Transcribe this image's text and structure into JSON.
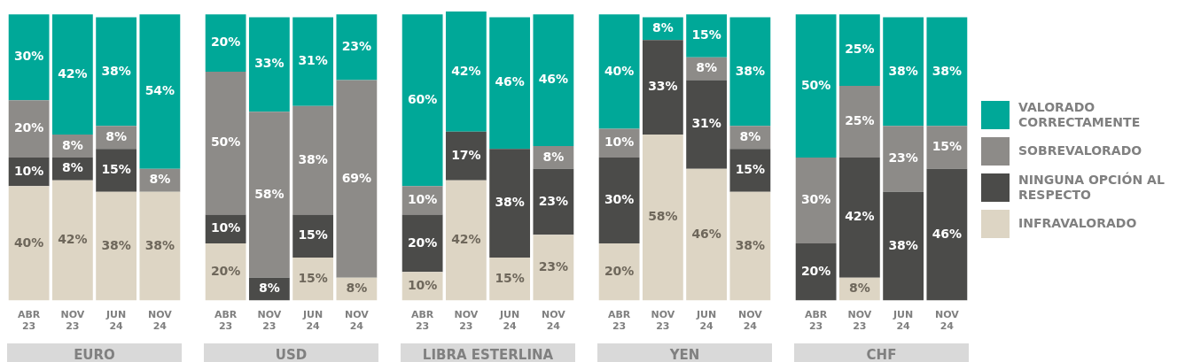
{
  "chart_data": [
    {
      "type": "bar",
      "title": "EURO",
      "stacked": true,
      "categories": [
        "ABR 23",
        "NOV 23",
        "JUN 24",
        "NOV 24"
      ],
      "ylim": [
        0,
        101
      ],
      "tick_labels": "x",
      "grid": false,
      "series": [
        {
          "color": "#ddd5c4",
          "values": [
            40,
            42,
            38,
            38
          ],
          "value_labels": [
            "40%",
            "42%",
            "38%",
            "38%"
          ]
        },
        {
          "color": "#4b4b49",
          "values": [
            10,
            8,
            15,
            null
          ],
          "value_labels": [
            "10%",
            "8%",
            "15%",
            null
          ]
        },
        {
          "color": "#8d8b88",
          "values": [
            20,
            8,
            8,
            8
          ],
          "value_labels": [
            "20%",
            "8%",
            "8%",
            "8%"
          ]
        },
        {
          "color": "#00a898",
          "values": [
            30,
            42,
            38,
            54
          ],
          "value_labels": [
            "30%",
            "42%",
            "38%",
            "54%"
          ]
        }
      ]
    },
    {
      "type": "bar",
      "title": "USD",
      "stacked": true,
      "categories": [
        "ABR 23",
        "NOV 23",
        "JUN 24",
        "NOV 24"
      ],
      "ylim": [
        0,
        101
      ],
      "tick_labels": "x",
      "grid": false,
      "series": [
        {
          "color": "#ddd5c4",
          "values": [
            20,
            null,
            15,
            8
          ],
          "value_labels": [
            "20%",
            null,
            "15%",
            "8%"
          ]
        },
        {
          "color": "#4b4b49",
          "values": [
            10,
            8,
            15,
            null
          ],
          "value_labels": [
            "10%",
            "8%",
            "15%",
            null
          ]
        },
        {
          "color": "#8d8b88",
          "values": [
            50,
            58,
            38,
            69
          ],
          "value_labels": [
            "50%",
            "58%",
            "38%",
            "69%"
          ]
        },
        {
          "color": "#00a898",
          "values": [
            20,
            33,
            31,
            23
          ],
          "value_labels": [
            "20%",
            "33%",
            "31%",
            "23%"
          ]
        }
      ]
    },
    {
      "type": "bar",
      "title": "LIBRA ESTERLINA",
      "stacked": true,
      "categories": [
        "ABR 23",
        "NOV 23",
        "JUN 24",
        "NOV 24"
      ],
      "ylim": [
        0,
        101
      ],
      "tick_labels": "x",
      "grid": false,
      "series": [
        {
          "color": "#ddd5c4",
          "values": [
            10,
            42,
            15,
            23
          ],
          "value_labels": [
            "10%",
            "42%",
            "15%",
            "23%"
          ]
        },
        {
          "color": "#4b4b49",
          "values": [
            20,
            17,
            38,
            23
          ],
          "value_labels": [
            "20%",
            "17%",
            "38%",
            "23%"
          ]
        },
        {
          "color": "#8d8b88",
          "values": [
            10,
            null,
            null,
            8
          ],
          "value_labels": [
            "10%",
            null,
            null,
            "8%"
          ]
        },
        {
          "color": "#00a898",
          "values": [
            60,
            42,
            46,
            46
          ],
          "value_labels": [
            "60%",
            "42%",
            "46%",
            "46%"
          ]
        }
      ]
    },
    {
      "type": "bar",
      "title": "YEN",
      "stacked": true,
      "categories": [
        "ABR 23",
        "NOV 23",
        "JUN 24",
        "NOV 24"
      ],
      "ylim": [
        0,
        101
      ],
      "tick_labels": "x",
      "grid": false,
      "series": [
        {
          "color": "#ddd5c4",
          "values": [
            20,
            58,
            46,
            38
          ],
          "value_labels": [
            "20%",
            "58%",
            "46%",
            "38%"
          ]
        },
        {
          "color": "#4b4b49",
          "values": [
            30,
            33,
            31,
            15
          ],
          "value_labels": [
            "30%",
            "33%",
            "31%",
            "15%"
          ]
        },
        {
          "color": "#8d8b88",
          "values": [
            10,
            null,
            8,
            8
          ],
          "value_labels": [
            "10%",
            null,
            "8%",
            "8%"
          ]
        },
        {
          "color": "#00a898",
          "values": [
            40,
            8,
            15,
            38
          ],
          "value_labels": [
            "40%",
            "8%",
            "15%",
            "38%"
          ]
        }
      ]
    },
    {
      "type": "bar",
      "title": "CHF",
      "stacked": true,
      "categories": [
        "ABR 23",
        "NOV 23",
        "JUN 24",
        "NOV 24"
      ],
      "ylim": [
        0,
        101
      ],
      "tick_labels": "x",
      "grid": false,
      "legend": "right",
      "series": [
        {
          "name": "INFRAVALORADO",
          "color": "#ddd5c4",
          "values": [
            null,
            8,
            null,
            null
          ],
          "value_labels": [
            null,
            "8%",
            null,
            null
          ]
        },
        {
          "name": "NINGUNA OPCIÓN AL RESPECTO",
          "color": "#4b4b49",
          "values": [
            20,
            42,
            38,
            46
          ],
          "value_labels": [
            "20%",
            "42%",
            "38%",
            "46%"
          ]
        },
        {
          "name": "SOBREVALORADO",
          "color": "#8d8b88",
          "values": [
            30,
            25,
            23,
            15
          ],
          "value_labels": [
            "30%",
            "25%",
            "23%",
            "15%"
          ]
        },
        {
          "name": "VALORADO CORRECTAMENTE",
          "color": "#00a898",
          "values": [
            50,
            25,
            38,
            38
          ],
          "value_labels": [
            "50%",
            "25%",
            "38%",
            "38%"
          ]
        }
      ]
    }
  ]
}
